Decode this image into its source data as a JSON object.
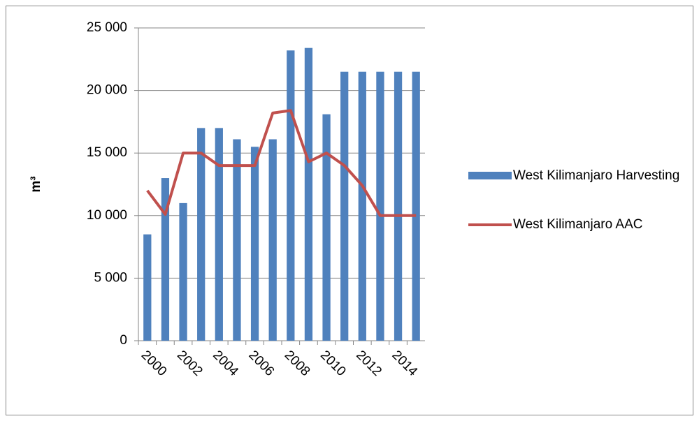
{
  "chart_data": {
    "type": "bar-line",
    "ylabel": "m³",
    "categories": [
      "2000",
      null,
      "2002",
      null,
      "2004",
      null,
      "2006",
      null,
      "2008",
      null,
      "2010",
      null,
      "2012",
      null,
      "2014",
      null
    ],
    "series": [
      {
        "name": "West Kilimanjaro Harvesting",
        "type": "bar",
        "color": "#4f81bd",
        "values": [
          8500,
          13000,
          11000,
          17000,
          17000,
          16100,
          15500,
          16100,
          23200,
          23400,
          18100,
          21500,
          21500,
          21500,
          21500,
          21500
        ]
      },
      {
        "name": "West Kilimanjaro AAC",
        "type": "line",
        "color": "#c0504d",
        "values": [
          12000,
          10100,
          15000,
          15000,
          14000,
          14000,
          14000,
          18200,
          18400,
          14300,
          15000,
          14000,
          12400,
          10000,
          10000,
          10000
        ]
      }
    ],
    "ylim": [
      0,
      25000
    ],
    "yticks": [
      0,
      {
        "value": 5000,
        "label": "5 000"
      },
      {
        "value": 10000,
        "label": "10 000"
      },
      {
        "value": 15000,
        "label": "15 000"
      },
      {
        "value": 20000,
        "label": "20 000"
      },
      {
        "value": 25000,
        "label": "25 000"
      }
    ],
    "grid": true,
    "legend": "right"
  }
}
